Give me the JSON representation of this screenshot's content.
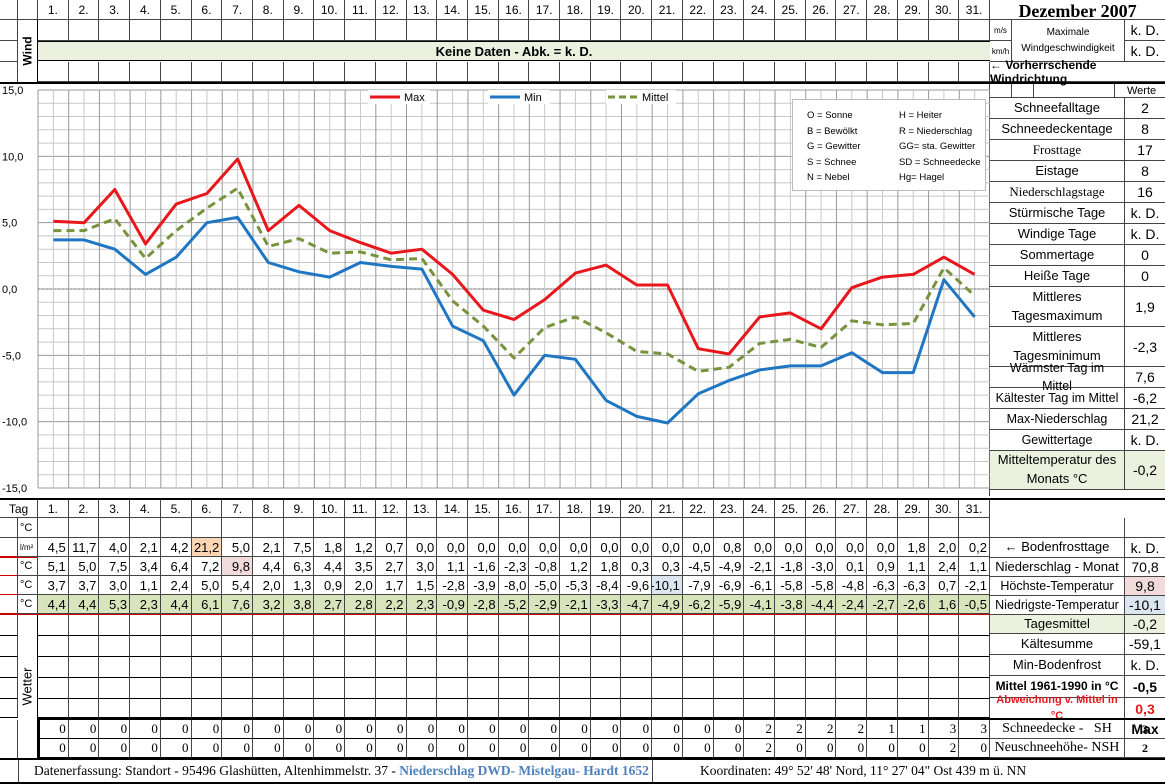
{
  "header": {
    "title": "Dezember 2007",
    "days": [
      "1.",
      "2.",
      "3.",
      "4.",
      "5.",
      "6.",
      "7.",
      "8.",
      "9.",
      "10.",
      "11.",
      "12.",
      "13.",
      "14.",
      "15.",
      "16.",
      "17.",
      "18.",
      "19.",
      "20.",
      "21.",
      "22.",
      "23.",
      "24.",
      "25.",
      "26.",
      "27.",
      "28.",
      "29.",
      "30.",
      "31."
    ]
  },
  "wind": {
    "label": "Wind",
    "banner": "Keine Daten - Abk. = k. D.",
    "unit_ms": "m/s",
    "unit_kmh": "km/h",
    "max_label_1": "Maximale",
    "max_label_2": "Windgeschwindigkeit",
    "max_ms": "k. D.",
    "max_kmh": "k. D.",
    "direction_label": "← Vorherrschende Windrichtung"
  },
  "legend_box": {
    "left": [
      "O = Sonne",
      "B = Bewölkt",
      "G = Gewitter",
      "S = Schnee",
      "N = Nebel"
    ],
    "right": [
      "H = Heiter",
      "R = Niederschlag",
      "GG= sta. Gewitter",
      "SD = Schneedecke",
      "Hg= Hagel"
    ]
  },
  "chart_data": {
    "type": "line",
    "title": "",
    "xlabel": "Tag",
    "ylabel": "°C",
    "ylim": [
      -15,
      15
    ],
    "yticks": [
      "15,0",
      "10,0",
      "5,0",
      "0,0",
      "-5,0",
      "-10,0",
      "-15,0"
    ],
    "grid": true,
    "legend_position": "top",
    "x": [
      1,
      2,
      3,
      4,
      5,
      6,
      7,
      8,
      9,
      10,
      11,
      12,
      13,
      14,
      15,
      16,
      17,
      18,
      19,
      20,
      21,
      22,
      23,
      24,
      25,
      26,
      27,
      28,
      29,
      30,
      31
    ],
    "series": [
      {
        "name": "Max",
        "color": "#e8171c",
        "style": "solid",
        "values": [
          5.1,
          5.0,
          7.5,
          3.4,
          6.4,
          7.2,
          9.8,
          4.4,
          6.3,
          4.4,
          3.5,
          2.7,
          3.0,
          1.1,
          -1.6,
          -2.3,
          -0.8,
          1.2,
          1.8,
          0.3,
          0.3,
          -4.5,
          -4.9,
          -2.1,
          -1.8,
          -3.0,
          0.1,
          0.9,
          1.1,
          2.4,
          1.1
        ]
      },
      {
        "name": "Min",
        "color": "#1f77c4",
        "style": "solid",
        "values": [
          3.7,
          3.7,
          3.0,
          1.1,
          2.4,
          5.0,
          5.4,
          2.0,
          1.3,
          0.9,
          2.0,
          1.7,
          1.5,
          -2.8,
          -3.9,
          -8.0,
          -5.0,
          -5.3,
          -8.4,
          -9.6,
          -10.1,
          -7.9,
          -6.9,
          -6.1,
          -5.8,
          -5.8,
          -4.8,
          -6.3,
          -6.3,
          0.7,
          -2.1
        ]
      },
      {
        "name": "Mittel",
        "color": "#77933c",
        "style": "dashed",
        "values": [
          4.4,
          4.4,
          5.3,
          2.3,
          4.4,
          6.1,
          7.6,
          3.2,
          3.8,
          2.7,
          2.8,
          2.2,
          2.3,
          -0.9,
          -2.8,
          -5.2,
          -2.9,
          -2.1,
          -3.3,
          -4.7,
          -4.9,
          -6.2,
          -5.9,
          -4.1,
          -3.8,
          -4.4,
          -2.4,
          -2.7,
          -2.6,
          1.6,
          -0.5
        ]
      }
    ]
  },
  "table": {
    "tag_label": "Tag",
    "rows": [
      {
        "unit": "°C",
        "values": []
      },
      {
        "unit": "l/m²",
        "name": "Niederschlag",
        "values": [
          "4,5",
          "11,7",
          "4,0",
          "2,1",
          "4,2",
          "21,2",
          "5,0",
          "2,1",
          "7,5",
          "1,8",
          "1,2",
          "0,7",
          "0,0",
          "0,0",
          "0,0",
          "0,0",
          "0,0",
          "0,0",
          "0,0",
          "0,0",
          "0,0",
          "0,0",
          "0,8",
          "0,0",
          "0,0",
          "0,0",
          "0,0",
          "0,0",
          "1,8",
          "2,0",
          "0,2"
        ]
      },
      {
        "unit": "°C",
        "name": "Max",
        "values": [
          "5,1",
          "5,0",
          "7,5",
          "3,4",
          "6,4",
          "7,2",
          "9,8",
          "4,4",
          "6,3",
          "4,4",
          "3,5",
          "2,7",
          "3,0",
          "1,1",
          "-1,6",
          "-2,3",
          "-0,8",
          "1,2",
          "1,8",
          "0,3",
          "0,3",
          "-4,5",
          "-4,9",
          "-2,1",
          "-1,8",
          "-3,0",
          "0,1",
          "0,9",
          "1,1",
          "2,4",
          "1,1"
        ]
      },
      {
        "unit": "°C",
        "name": "Min",
        "values": [
          "3,7",
          "3,7",
          "3,0",
          "1,1",
          "2,4",
          "5,0",
          "5,4",
          "2,0",
          "1,3",
          "0,9",
          "2,0",
          "1,7",
          "1,5",
          "-2,8",
          "-3,9",
          "-8,0",
          "-5,0",
          "-5,3",
          "-8,4",
          "-9,6",
          "-10,1",
          "-7,9",
          "-6,9",
          "-6,1",
          "-5,8",
          "-5,8",
          "-4,8",
          "-6,3",
          "-6,3",
          "0,7",
          "-2,1"
        ]
      },
      {
        "unit": "°C",
        "name": "Mittel",
        "values": [
          "4,4",
          "4,4",
          "5,3",
          "2,3",
          "4,4",
          "6,1",
          "7,6",
          "3,2",
          "3,8",
          "2,7",
          "2,8",
          "2,2",
          "2,3",
          "-0,9",
          "-2,8",
          "-5,2",
          "-2,9",
          "-2,1",
          "-3,3",
          "-4,7",
          "-4,9",
          "-6,2",
          "-5,9",
          "-4,1",
          "-3,8",
          "-4,4",
          "-2,4",
          "-2,7",
          "-2,6",
          "1,6",
          "-0,5"
        ]
      }
    ],
    "wetter_label": "Wetter",
    "snow_sh": [
      "0",
      "0",
      "0",
      "0",
      "0",
      "0",
      "0",
      "0",
      "0",
      "0",
      "0",
      "0",
      "0",
      "0",
      "0",
      "0",
      "0",
      "0",
      "0",
      "0",
      "0",
      "0",
      "0",
      "2",
      "2",
      "2",
      "2",
      "1",
      "1",
      "3",
      "3"
    ],
    "snow_nsh": [
      "0",
      "0",
      "0",
      "0",
      "0",
      "0",
      "0",
      "0",
      "0",
      "0",
      "0",
      "0",
      "0",
      "0",
      "0",
      "0",
      "0",
      "0",
      "0",
      "0",
      "0",
      "0",
      "0",
      "2",
      "0",
      "0",
      "0",
      "0",
      "0",
      "2",
      "0"
    ]
  },
  "summary": {
    "werte_label": "Werte",
    "items": [
      {
        "label": "Schneefalltage",
        "value": "2"
      },
      {
        "label": "Schneedeckentage",
        "value": "8"
      },
      {
        "label": "Frosttage",
        "value": "17"
      },
      {
        "label": "Eistage",
        "value": "8"
      },
      {
        "label": "Niederschlagstage",
        "value": "16"
      },
      {
        "label": "Stürmische Tage",
        "value": "k. D."
      },
      {
        "label": "Windige Tage",
        "value": "k. D."
      },
      {
        "label": "Sommertage",
        "value": "0"
      },
      {
        "label": "Heiße Tage",
        "value": "0"
      },
      {
        "label": "Mittleres Tagesmaximum",
        "value": "1,9"
      },
      {
        "label": "Mittleres Tagesminimum",
        "value": "-2,3"
      },
      {
        "label": "Wärmster Tag im Mittel",
        "value": "7,6"
      },
      {
        "label": "Kältester Tag im Mittel",
        "value": "-6,2"
      },
      {
        "label": "Max-Niederschlag",
        "value": "21,2"
      },
      {
        "label": "Gewittertage",
        "value": "k. D."
      },
      {
        "label": "Mitteltemperatur des Monats °C",
        "value": "-0,2"
      }
    ],
    "bodenfrost_label": "← Bodenfrosttage",
    "bodenfrost_value": "k. D.",
    "niederschlag_label": "Niederschlag - Monat",
    "niederschlag_value": "70,8",
    "hoechste_label": "Höchste-Temperatur",
    "hoechste_value": "9,8",
    "niedrigste_label": "Niedrigste-Temperatur",
    "niedrigste_value": "-10,1",
    "tagesmittel_label": "Tagesmittel",
    "tagesmittel_value": "-0,2",
    "kaeltesumme_label": "Kältesumme",
    "kaeltesumme_value": "-59,1",
    "minboden_label": "Min-Bodenfrost",
    "minboden_value": "k. D.",
    "mittel_label": "Mittel 1961-1990 in °C",
    "mittel_value": "-0,5",
    "abweichung_label": "Abweichung v. Mittel in °C",
    "abweichung_value": "0,3",
    "max_label": "Max",
    "sh_label": "Schneedecke -   SH",
    "sh_value": "3",
    "nsh_label": "Neuschneehöhe- NSH",
    "nsh_value": "2"
  },
  "footer": {
    "left": "Datenerfassung:  Standort -  95496  Glashütten, Altenhimmelstr. 37 - ",
    "blue": "Niederschlag DWD- Mistelgau- Hardt 1652",
    "coords": "Koordinaten:  49° 52' 48' Nord,   11° 27' 04\" Ost   439 m ü. NN"
  }
}
